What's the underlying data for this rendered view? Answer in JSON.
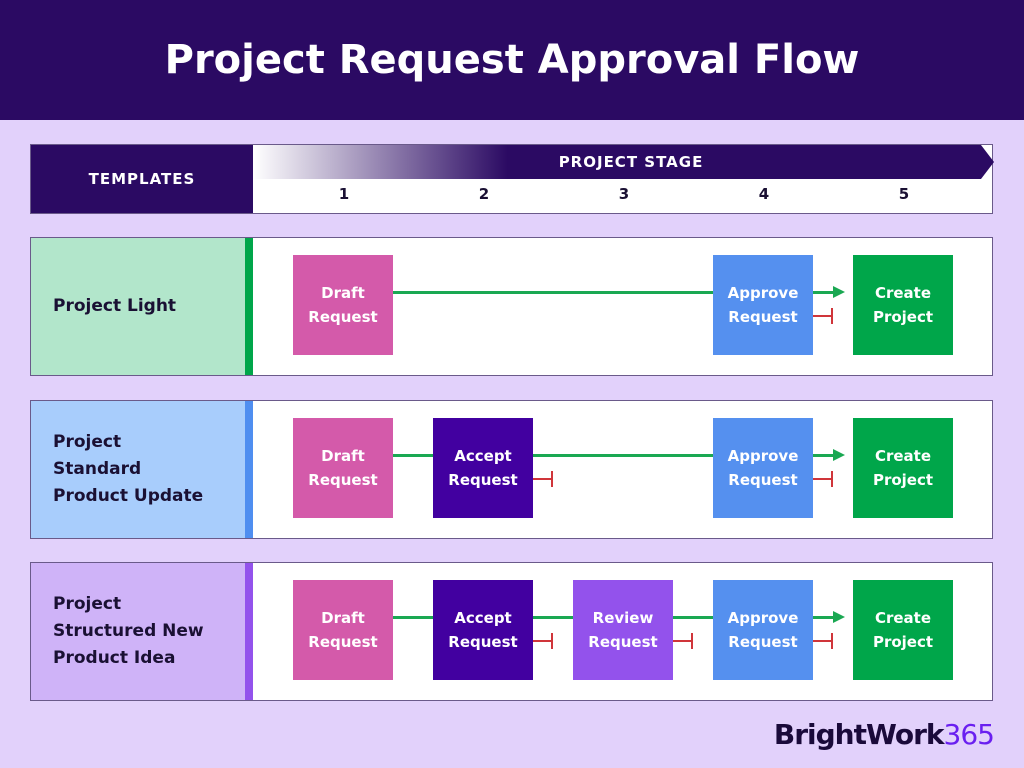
{
  "title": "Project Request Approval Flow",
  "header": {
    "templates_label": "TEMPLATES",
    "stage_label": "PROJECT STAGE",
    "stages": [
      "1",
      "2",
      "3",
      "4",
      "5"
    ]
  },
  "colors": {
    "draft": "#d45aaa",
    "accept": "#4200a0",
    "review": "#9352ec",
    "approve": "#5590ef",
    "create": "#00a64a",
    "flow_line": "#1aa852",
    "reject_marker": "#d0353a"
  },
  "rows": [
    {
      "name": "Project Light",
      "panel_color": "#b2e6cb",
      "stripe_color": "#00a64a",
      "steps": [
        {
          "stage": 1,
          "label": "Draft Request",
          "type": "draft"
        },
        {
          "stage": 4,
          "label": "Approve Request",
          "type": "approve"
        },
        {
          "stage": 5,
          "label": "Create Project",
          "type": "create"
        }
      ]
    },
    {
      "name": "Project Standard Product Update",
      "panel_color": "#a8cdfc",
      "stripe_color": "#4f8ef0",
      "steps": [
        {
          "stage": 1,
          "label": "Draft Request",
          "type": "draft"
        },
        {
          "stage": 2,
          "label": "Accept Request",
          "type": "accept"
        },
        {
          "stage": 4,
          "label": "Approve Request",
          "type": "approve"
        },
        {
          "stage": 5,
          "label": "Create Project",
          "type": "create"
        }
      ]
    },
    {
      "name": "Project Structured New Product Idea",
      "panel_color": "#cfb3f8",
      "stripe_color": "#9352ec",
      "steps": [
        {
          "stage": 1,
          "label": "Draft Request",
          "type": "draft"
        },
        {
          "stage": 2,
          "label": "Accept Request",
          "type": "accept"
        },
        {
          "stage": 3,
          "label": "Review Request",
          "type": "review"
        },
        {
          "stage": 4,
          "label": "Approve Request",
          "type": "approve"
        },
        {
          "stage": 5,
          "label": "Create Project",
          "type": "create"
        }
      ]
    }
  ],
  "logo": {
    "word": "BrightWork",
    "number": "365"
  }
}
